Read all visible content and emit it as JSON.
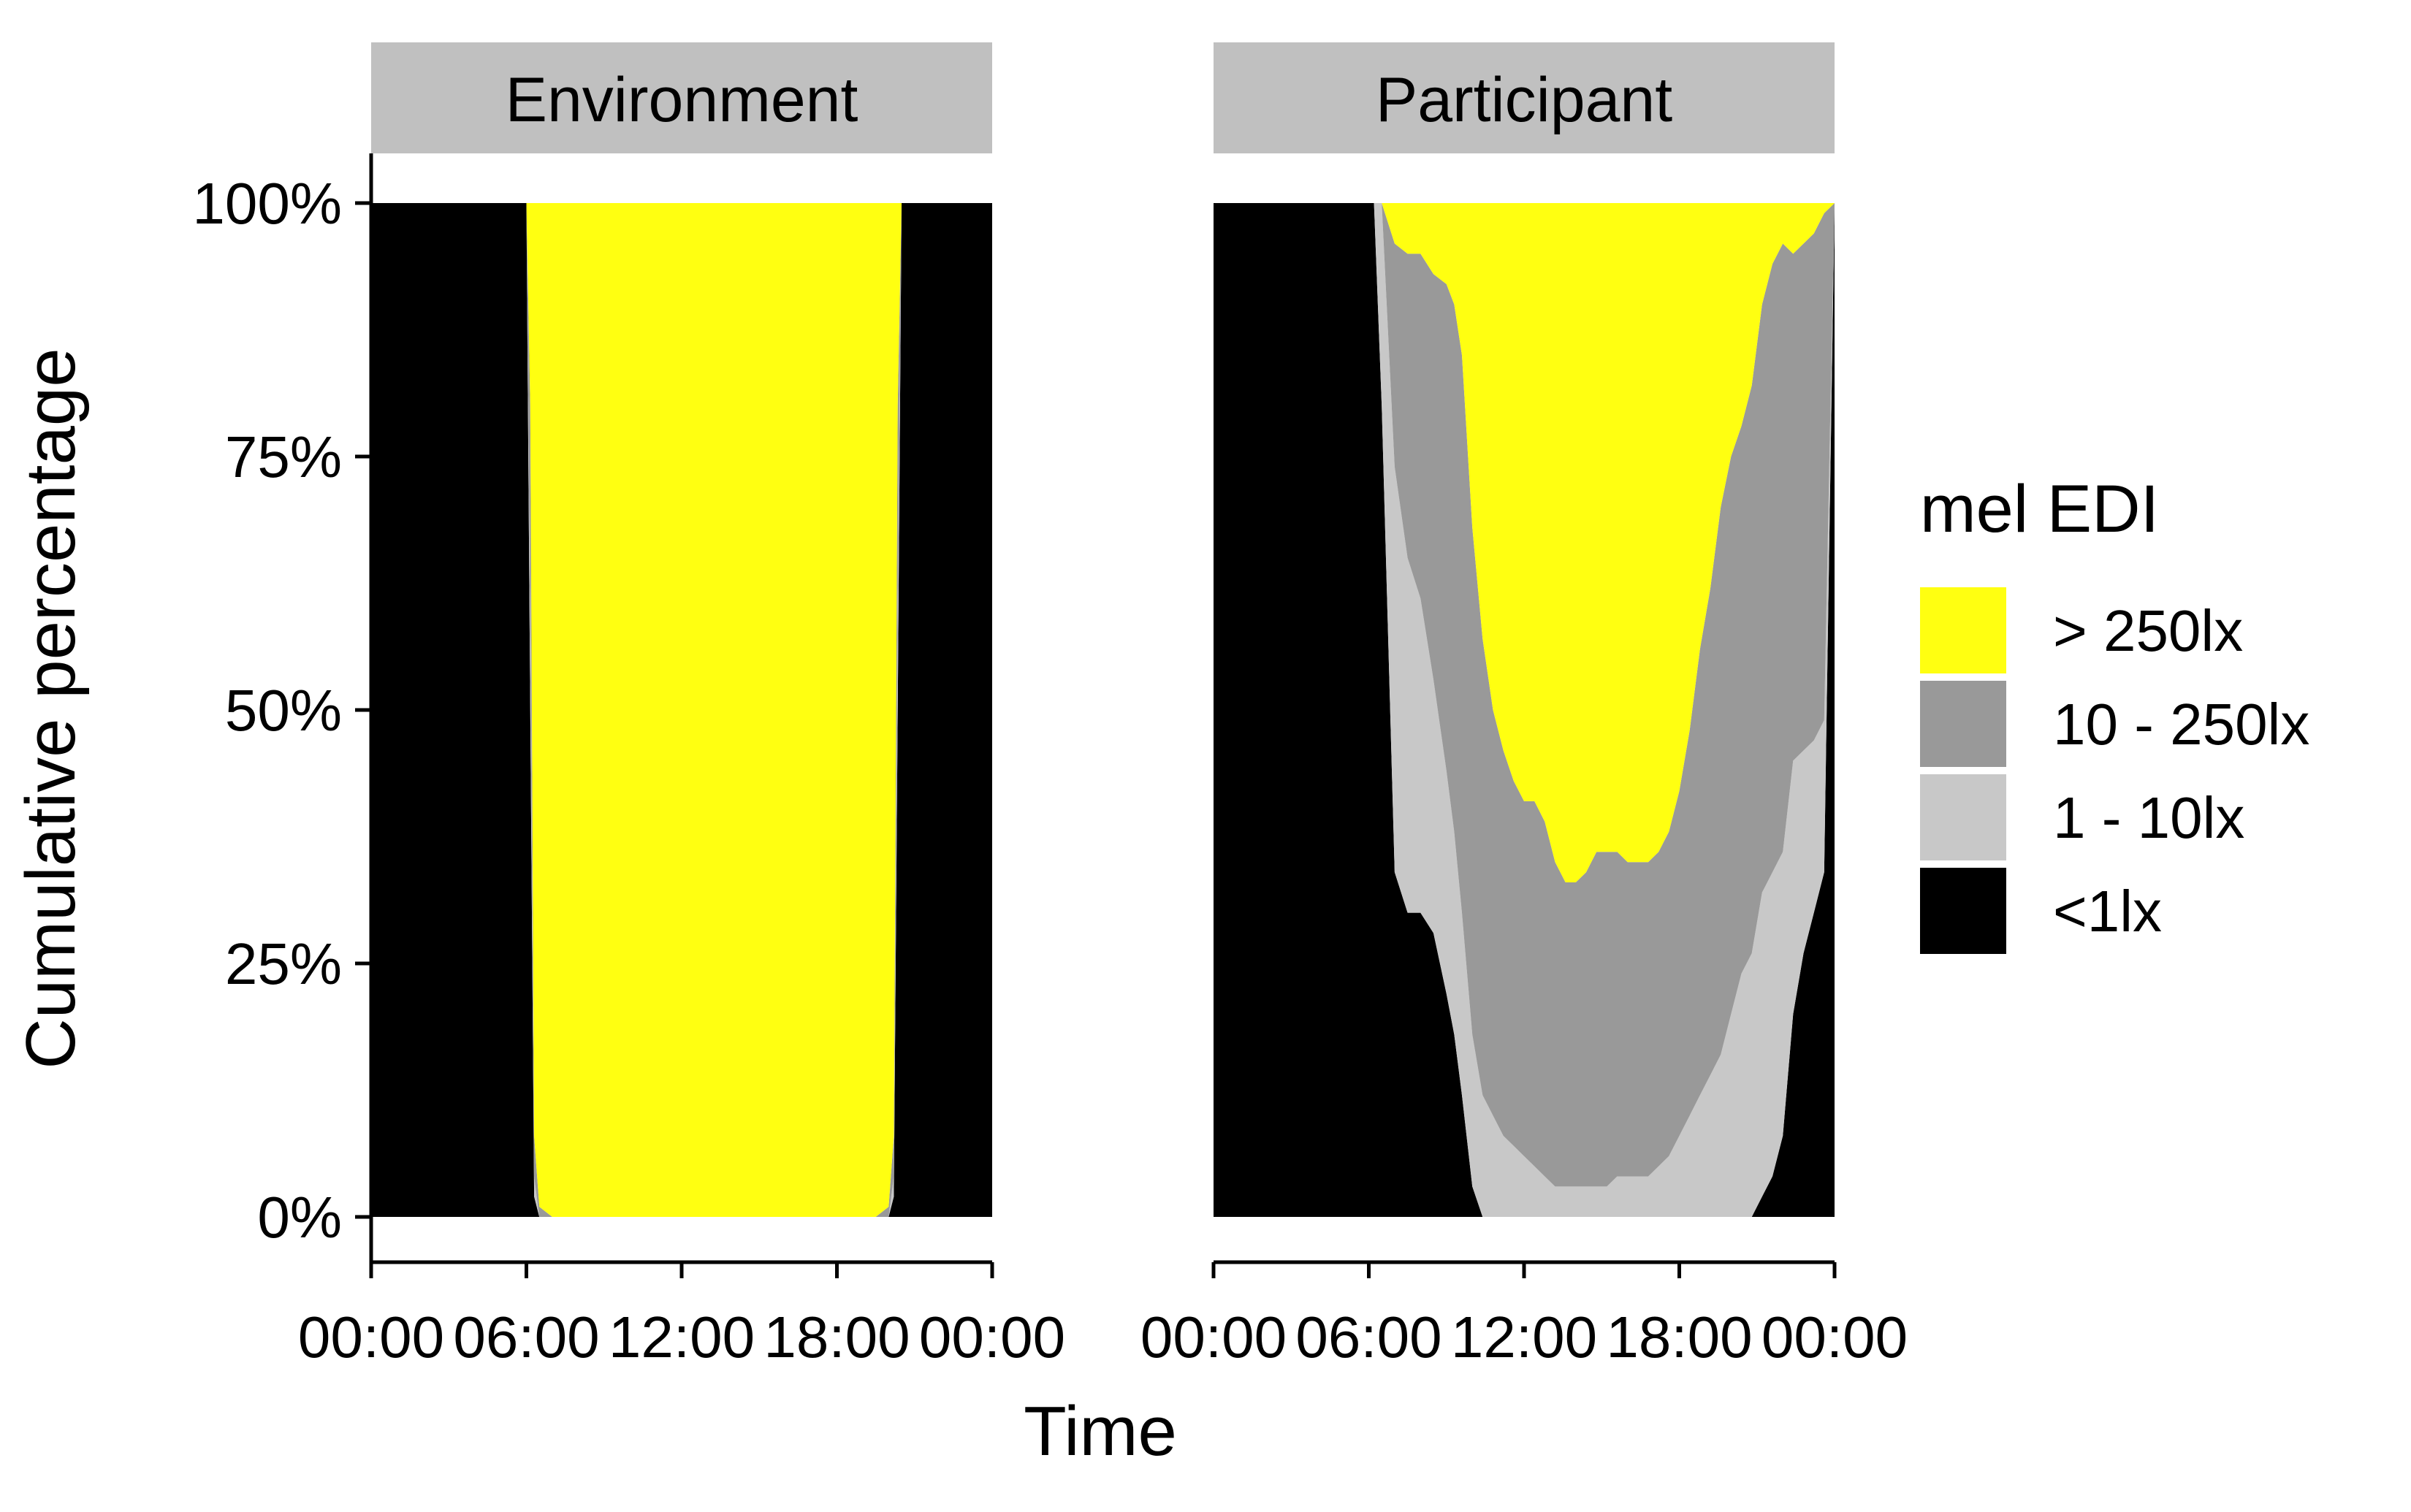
{
  "chart_data": {
    "type": "area",
    "stacked": true,
    "normalized": true,
    "xlabel": "Time",
    "ylabel": "Cumulative percentage",
    "ylim": [
      0,
      100
    ],
    "xlim_hours": [
      0,
      24
    ],
    "y_ticks": [
      0,
      25,
      50,
      75,
      100
    ],
    "y_tick_labels": [
      "0%",
      "25%",
      "50%",
      "75%",
      "100%"
    ],
    "x_ticks_hours": [
      0,
      6,
      12,
      18,
      24
    ],
    "x_tick_labels": [
      "00:00",
      "06:00",
      "12:00",
      "18:00",
      "00:00"
    ],
    "grid": false,
    "legend": {
      "title": "mel EDI",
      "position": "right",
      "entries": [
        {
          "label": "> 250lx",
          "color": "#FFFF11"
        },
        {
          "label": "10 - 250lx",
          "color": "#999999"
        },
        {
          "label": "1 - 10lx",
          "color": "#C8C8C8"
        },
        {
          "label": "<1lx",
          "color": "#000000"
        }
      ]
    },
    "stack_order_bottom_to_top": [
      "<1lx",
      "1 - 10lx",
      "10 - 250lx",
      "> 250lx"
    ],
    "panels": [
      {
        "facet": "Environment",
        "x_hours": [
          0,
          6.0,
          6.15,
          6.3,
          6.5,
          7.0,
          19.5,
          20.0,
          20.2,
          20.35,
          20.5,
          24
        ],
        "pct_lt1": [
          100,
          100,
          50,
          2,
          0,
          0,
          0,
          0,
          2,
          50,
          100,
          100
        ],
        "pct_1_10": [
          0,
          0,
          10,
          2,
          0,
          0,
          0,
          0,
          2,
          10,
          0,
          0
        ],
        "pct_10_250": [
          0,
          0,
          20,
          4,
          1,
          0,
          0,
          1,
          4,
          20,
          0,
          0
        ],
        "pct_gt250": [
          0,
          0,
          20,
          92,
          99,
          100,
          100,
          99,
          92,
          20,
          0,
          0
        ]
      },
      {
        "facet": "Participant",
        "x_hours": [
          0,
          6.2,
          6.5,
          7.0,
          7.5,
          8.0,
          8.5,
          9.0,
          9.3,
          9.6,
          10.0,
          10.4,
          10.8,
          11.2,
          11.6,
          12.0,
          12.4,
          12.8,
          13.2,
          13.6,
          14.0,
          14.4,
          14.8,
          15.2,
          15.6,
          16.0,
          16.4,
          16.8,
          17.2,
          17.6,
          18.0,
          18.4,
          18.8,
          19.2,
          19.6,
          20.0,
          20.4,
          20.8,
          21.2,
          21.6,
          22.0,
          22.4,
          22.8,
          23.2,
          23.6,
          24
        ],
        "pct_lt1": [
          100,
          100,
          80,
          34,
          30,
          30,
          28,
          22,
          18,
          12,
          3,
          0,
          0,
          0,
          0,
          0,
          0,
          0,
          0,
          0,
          0,
          0,
          0,
          0,
          0,
          0,
          0,
          0,
          0,
          0,
          0,
          0,
          0,
          0,
          0,
          0,
          0,
          0,
          2,
          4,
          8,
          20,
          26,
          30,
          34,
          100
        ],
        "pct_1_10": [
          0,
          0,
          20,
          40,
          35,
          31,
          25,
          22,
          20,
          18,
          15,
          12,
          10,
          8,
          7,
          6,
          5,
          4,
          3,
          3,
          3,
          3,
          3,
          3,
          4,
          4,
          4,
          4,
          5,
          6,
          8,
          10,
          12,
          14,
          16,
          20,
          24,
          26,
          30,
          30,
          28,
          25,
          20,
          17,
          15,
          0
        ],
        "pct_10_250": [
          0,
          0,
          0,
          22,
          30,
          34,
          40,
          48,
          52,
          55,
          50,
          45,
          40,
          38,
          36,
          35,
          36,
          35,
          32,
          30,
          30,
          31,
          33,
          33,
          32,
          31,
          31,
          31,
          31,
          32,
          34,
          38,
          44,
          48,
          54,
          55,
          54,
          56,
          58,
          60,
          60,
          50,
          50,
          50,
          50,
          0
        ],
        "pct_gt250": [
          0,
          0,
          0,
          4,
          5,
          5,
          7,
          8,
          10,
          15,
          32,
          43,
          50,
          54,
          57,
          59,
          59,
          61,
          65,
          67,
          67,
          66,
          64,
          64,
          64,
          65,
          65,
          65,
          64,
          62,
          58,
          52,
          44,
          38,
          30,
          25,
          22,
          18,
          10,
          6,
          4,
          5,
          4,
          3,
          1,
          0
        ]
      }
    ]
  }
}
